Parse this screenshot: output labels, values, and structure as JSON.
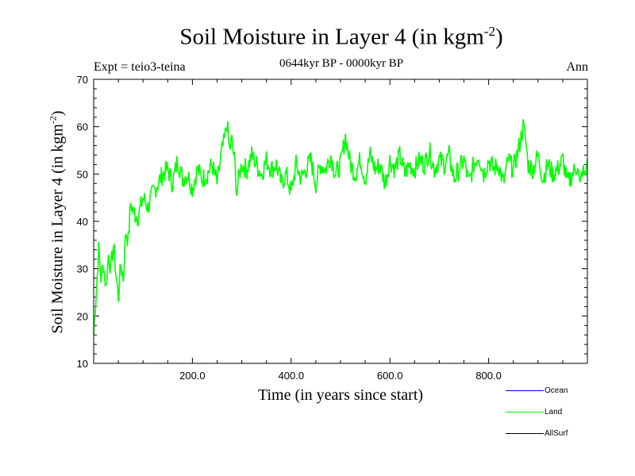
{
  "chart_data": {
    "type": "line",
    "title": "Soil Moisture in Layer 4 (in kgm",
    "title_superscript": "-2",
    "title_close": ")",
    "subtitle": "0644kyr BP - 0000kyr BP",
    "experiment": "Expt = teio3-teina",
    "season": "Ann",
    "xlabel": "Time (in years since start)",
    "ylabel": "Soil Moisture in Layer 4 (in kgm",
    "ylabel_superscript": "-2",
    "ylabel_close": ")",
    "xlim": [
      0,
      1000
    ],
    "ylim": [
      10,
      70
    ],
    "x_ticks": [
      200,
      400,
      600,
      800
    ],
    "x_tick_labels": [
      "200.0",
      "400.0",
      "600.0",
      "800.0"
    ],
    "y_ticks": [
      10,
      20,
      30,
      40,
      50,
      60,
      70
    ],
    "y_tick_labels": [
      "10",
      "20",
      "30",
      "40",
      "50",
      "60",
      "70"
    ],
    "legend": [
      {
        "name": "Ocean",
        "color": "#0000ff"
      },
      {
        "name": "Land",
        "color": "#00ff00"
      },
      {
        "name": "AllSurf",
        "color": "#000000"
      }
    ],
    "series": [
      {
        "name": "Land",
        "color": "#00ff00",
        "x": [
          0,
          3,
          6,
          10,
          15,
          20,
          25,
          30,
          35,
          40,
          45,
          50,
          55,
          60,
          65,
          70,
          75,
          80,
          90,
          100,
          110,
          120,
          130,
          140,
          150,
          160,
          170,
          180,
          190,
          200,
          210,
          220,
          230,
          240,
          250,
          260,
          265,
          270,
          275,
          280,
          285,
          290,
          295,
          300,
          310,
          320,
          330,
          340,
          350,
          360,
          370,
          380,
          390,
          400,
          410,
          420,
          430,
          440,
          450,
          460,
          470,
          480,
          490,
          500,
          510,
          515,
          520,
          530,
          540,
          550,
          560,
          570,
          580,
          590,
          600,
          610,
          620,
          630,
          640,
          650,
          660,
          670,
          680,
          690,
          700,
          710,
          720,
          730,
          740,
          750,
          760,
          770,
          780,
          790,
          800,
          810,
          820,
          830,
          840,
          850,
          860,
          870,
          875,
          880,
          890,
          900,
          910,
          920,
          930,
          940,
          950,
          960,
          970,
          980,
          985,
          990,
          995,
          1000
        ],
        "values": [
          16,
          22,
          26,
          34,
          28,
          31,
          26,
          33,
          30,
          35,
          29,
          24,
          31,
          28,
          38,
          36,
          44,
          42,
          41,
          45,
          43,
          46,
          48,
          50,
          51,
          48,
          53,
          49,
          50,
          47,
          51,
          49,
          50,
          52,
          48,
          55,
          57,
          61,
          55,
          57,
          53,
          46,
          50,
          52,
          51,
          54,
          52,
          50,
          53,
          51,
          52,
          48,
          50,
          46,
          52,
          49,
          51,
          53,
          48,
          52,
          51,
          54,
          50,
          52,
          58,
          55,
          52,
          50,
          53,
          49,
          54,
          51,
          52,
          48,
          53,
          51,
          54,
          50,
          52,
          51,
          53,
          52,
          55,
          51,
          53,
          52,
          54,
          49,
          51,
          53,
          48,
          52,
          54,
          50,
          53,
          51,
          52,
          48,
          53,
          51,
          55,
          60,
          57,
          52,
          51,
          54,
          49,
          52,
          50,
          51,
          53,
          48,
          50,
          52,
          47,
          51,
          49,
          53
        ]
      }
    ]
  }
}
